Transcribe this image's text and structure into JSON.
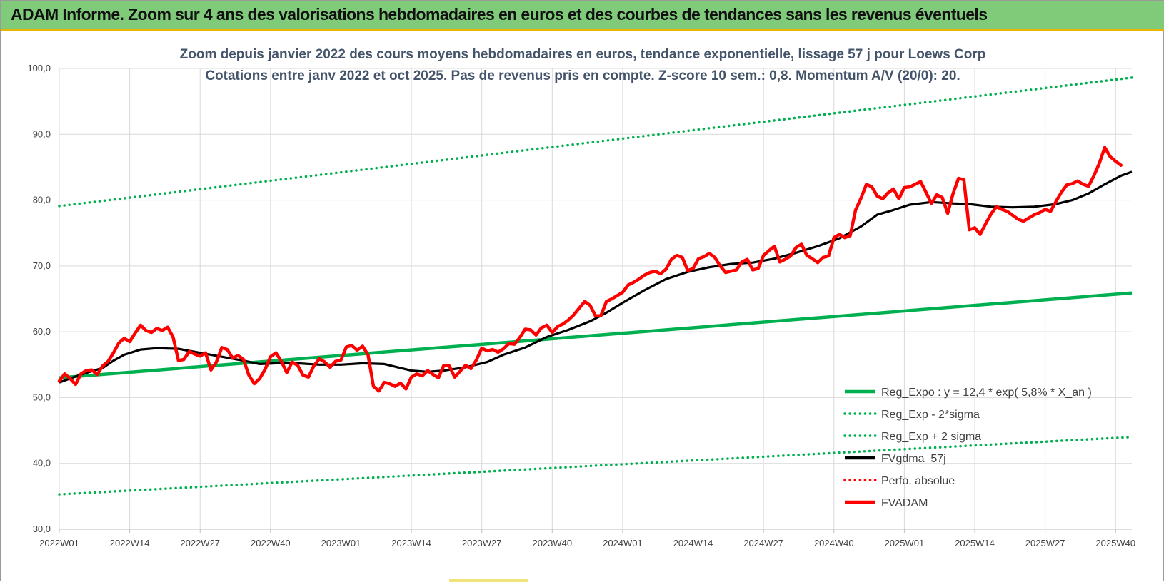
{
  "header": {
    "title": "ADAM Informe. Zoom sur 4 ans des valorisations hebdomadaires en euros et des courbes de tendances sans les revenus éventuels"
  },
  "colors": {
    "header_bg": "#7fcb7a",
    "trend": "#00b050",
    "band": "#00b050",
    "smooth": "#000000",
    "price": "#ff0000",
    "perfo": "#ff0000",
    "grid": "#d9d9d9",
    "text": "#44546a"
  },
  "chart_data": {
    "type": "line",
    "subtitle_lines": [
      "Zoom depuis janvier 2022 des cours moyens hebdomadaires en euros, tendance exponentielle, lissage 57 j pour Loews Corp",
      "Cotations entre janv 2022 et oct 2025. Pas de revenus pris en compte. Z-score 10 sem.: 0,8. Momentum A/V (20/0): 20."
    ],
    "x_start": "2022W01",
    "week_count": 199,
    "x_ticks": [
      {
        "index": 0,
        "label": "2022W01"
      },
      {
        "index": 13,
        "label": "2022W14"
      },
      {
        "index": 26,
        "label": "2022W27"
      },
      {
        "index": 39,
        "label": "2022W40"
      },
      {
        "index": 52,
        "label": "2023W01"
      },
      {
        "index": 65,
        "label": "2023W14"
      },
      {
        "index": 78,
        "label": "2023W27"
      },
      {
        "index": 91,
        "label": "2023W40"
      },
      {
        "index": 104,
        "label": "2024W01"
      },
      {
        "index": 117,
        "label": "2024W14"
      },
      {
        "index": 130,
        "label": "2024W27"
      },
      {
        "index": 143,
        "label": "2024W40"
      },
      {
        "index": 156,
        "label": "2025W01"
      },
      {
        "index": 169,
        "label": "2025W14"
      },
      {
        "index": 182,
        "label": "2025W27"
      },
      {
        "index": 195,
        "label": "2025W40"
      }
    ],
    "ylim": [
      30,
      100
    ],
    "y_ticks": [
      {
        "value": 30,
        "label": "30,0"
      },
      {
        "value": 40,
        "label": "40,0"
      },
      {
        "value": 50,
        "label": "50,0"
      },
      {
        "value": 60,
        "label": "60,0"
      },
      {
        "value": 70,
        "label": "70,0"
      },
      {
        "value": 80,
        "label": "80,0"
      },
      {
        "value": 90,
        "label": "90,0"
      },
      {
        "value": 100,
        "label": "100,0"
      }
    ],
    "grid": true,
    "legend_position": "bottom-right",
    "series": [
      {
        "name": "Reg_Expo : y = 12,4 * exp( 5,8% * X_an )",
        "style": "solid",
        "color": "#00b050",
        "points": [
          [
            0,
            53.0
          ],
          [
            198,
            65.9
          ]
        ]
      },
      {
        "name": "Reg_Exp - 2*sigma",
        "style": "dotted",
        "color": "#00b050",
        "points": [
          [
            0,
            35.3
          ],
          [
            198,
            44.0
          ]
        ]
      },
      {
        "name": "Reg_Exp + 2 sigma",
        "style": "dotted",
        "color": "#00b050",
        "points": [
          [
            0,
            79.1
          ],
          [
            198,
            98.6
          ]
        ]
      },
      {
        "name": "FVgdma_57j",
        "style": "solid",
        "color": "#000000",
        "points": [
          [
            0,
            52.3
          ],
          [
            4,
            53.5
          ],
          [
            8,
            54.5
          ],
          [
            10,
            55.6
          ],
          [
            12,
            56.5
          ],
          [
            15,
            57.3
          ],
          [
            18,
            57.5
          ],
          [
            22,
            57.4
          ],
          [
            26,
            56.8
          ],
          [
            30,
            56.2
          ],
          [
            34,
            55.6
          ],
          [
            37,
            55.1
          ],
          [
            40,
            55.2
          ],
          [
            44,
            55.2
          ],
          [
            48,
            55.0
          ],
          [
            52,
            55.0
          ],
          [
            56,
            55.2
          ],
          [
            60,
            55.1
          ],
          [
            63,
            54.5
          ],
          [
            65,
            54.1
          ],
          [
            68,
            53.9
          ],
          [
            71,
            54.1
          ],
          [
            75,
            54.6
          ],
          [
            79,
            55.4
          ],
          [
            82,
            56.5
          ],
          [
            86,
            57.6
          ],
          [
            90,
            59.2
          ],
          [
            94,
            60.3
          ],
          [
            98,
            61.6
          ],
          [
            101,
            62.9
          ],
          [
            104,
            64.4
          ],
          [
            108,
            66.3
          ],
          [
            112,
            68.0
          ],
          [
            116,
            69.1
          ],
          [
            120,
            69.8
          ],
          [
            124,
            70.3
          ],
          [
            128,
            70.5
          ],
          [
            132,
            71.1
          ],
          [
            136,
            72.0
          ],
          [
            140,
            73.0
          ],
          [
            144,
            74.2
          ],
          [
            148,
            76.0
          ],
          [
            151,
            77.8
          ],
          [
            154,
            78.5
          ],
          [
            157,
            79.3
          ],
          [
            161,
            79.7
          ],
          [
            165,
            79.5
          ],
          [
            168,
            79.4
          ],
          [
            172,
            79.0
          ],
          [
            176,
            78.9
          ],
          [
            180,
            79.0
          ],
          [
            184,
            79.4
          ],
          [
            187,
            80.0
          ],
          [
            190,
            81.0
          ],
          [
            193,
            82.4
          ],
          [
            196,
            83.7
          ],
          [
            198,
            84.3
          ]
        ]
      },
      {
        "name": "Perfo. absolue",
        "style": "dotted",
        "color": "#ff0000",
        "points": []
      },
      {
        "name": "FVADAM",
        "style": "solid",
        "color": "#ff0000",
        "points": [
          [
            0,
            52.5
          ],
          [
            1,
            53.6
          ],
          [
            2,
            52.9
          ],
          [
            3,
            52.0
          ],
          [
            4,
            53.6
          ],
          [
            5,
            54.1
          ],
          [
            6,
            54.2
          ],
          [
            7,
            53.5
          ],
          [
            8,
            54.8
          ],
          [
            9,
            55.5
          ],
          [
            10,
            56.8
          ],
          [
            11,
            58.3
          ],
          [
            12,
            59.0
          ],
          [
            13,
            58.5
          ],
          [
            14,
            59.8
          ],
          [
            15,
            61.0
          ],
          [
            16,
            60.2
          ],
          [
            17,
            59.9
          ],
          [
            18,
            60.5
          ],
          [
            19,
            60.2
          ],
          [
            20,
            60.7
          ],
          [
            21,
            59.2
          ],
          [
            22,
            55.6
          ],
          [
            23,
            55.8
          ],
          [
            24,
            57.0
          ],
          [
            25,
            56.6
          ],
          [
            26,
            56.3
          ],
          [
            27,
            56.8
          ],
          [
            28,
            54.2
          ],
          [
            29,
            55.4
          ],
          [
            30,
            57.6
          ],
          [
            31,
            57.3
          ],
          [
            32,
            56.0
          ],
          [
            33,
            56.4
          ],
          [
            34,
            55.8
          ],
          [
            35,
            53.4
          ],
          [
            36,
            52.1
          ],
          [
            37,
            52.9
          ],
          [
            38,
            54.3
          ],
          [
            39,
            56.2
          ],
          [
            40,
            56.8
          ],
          [
            41,
            55.5
          ],
          [
            42,
            53.8
          ],
          [
            43,
            55.4
          ],
          [
            44,
            54.9
          ],
          [
            45,
            53.4
          ],
          [
            46,
            53.1
          ],
          [
            47,
            54.8
          ],
          [
            48,
            55.9
          ],
          [
            49,
            55.4
          ],
          [
            50,
            54.6
          ],
          [
            51,
            55.5
          ],
          [
            52,
            55.7
          ],
          [
            53,
            57.7
          ],
          [
            54,
            57.9
          ],
          [
            55,
            57.2
          ],
          [
            56,
            57.8
          ],
          [
            57,
            56.5
          ],
          [
            58,
            51.7
          ],
          [
            59,
            51.0
          ],
          [
            60,
            52.3
          ],
          [
            61,
            52.1
          ],
          [
            62,
            51.7
          ],
          [
            63,
            52.2
          ],
          [
            64,
            51.3
          ],
          [
            65,
            53.1
          ],
          [
            66,
            53.6
          ],
          [
            67,
            53.3
          ],
          [
            68,
            54.1
          ],
          [
            69,
            53.5
          ],
          [
            70,
            53.0
          ],
          [
            71,
            54.9
          ],
          [
            72,
            54.8
          ],
          [
            73,
            53.1
          ],
          [
            74,
            54.0
          ],
          [
            75,
            54.9
          ],
          [
            76,
            54.4
          ],
          [
            77,
            55.7
          ],
          [
            78,
            57.5
          ],
          [
            79,
            57.1
          ],
          [
            80,
            57.3
          ],
          [
            81,
            56.9
          ],
          [
            82,
            57.4
          ],
          [
            83,
            58.2
          ],
          [
            84,
            58.1
          ],
          [
            85,
            59.1
          ],
          [
            86,
            60.4
          ],
          [
            87,
            60.3
          ],
          [
            88,
            59.5
          ],
          [
            89,
            60.6
          ],
          [
            90,
            61.0
          ],
          [
            91,
            59.9
          ],
          [
            92,
            60.8
          ],
          [
            93,
            61.2
          ],
          [
            94,
            61.8
          ],
          [
            95,
            62.6
          ],
          [
            96,
            63.6
          ],
          [
            97,
            64.6
          ],
          [
            98,
            64.0
          ],
          [
            99,
            62.4
          ],
          [
            100,
            62.5
          ],
          [
            101,
            64.6
          ],
          [
            102,
            65.0
          ],
          [
            103,
            65.5
          ],
          [
            104,
            66.0
          ],
          [
            105,
            67.1
          ],
          [
            106,
            67.5
          ],
          [
            107,
            68.0
          ],
          [
            108,
            68.6
          ],
          [
            109,
            69.0
          ],
          [
            110,
            69.2
          ],
          [
            111,
            68.8
          ],
          [
            112,
            69.5
          ],
          [
            113,
            71.0
          ],
          [
            114,
            71.6
          ],
          [
            115,
            71.3
          ],
          [
            116,
            69.3
          ],
          [
            117,
            69.6
          ],
          [
            118,
            71.1
          ],
          [
            119,
            71.4
          ],
          [
            120,
            71.9
          ],
          [
            121,
            71.3
          ],
          [
            122,
            70.0
          ],
          [
            123,
            69.0
          ],
          [
            124,
            69.2
          ],
          [
            125,
            69.4
          ],
          [
            126,
            70.6
          ],
          [
            127,
            71.0
          ],
          [
            128,
            69.4
          ],
          [
            129,
            69.6
          ],
          [
            130,
            71.6
          ],
          [
            131,
            72.3
          ],
          [
            132,
            73.0
          ],
          [
            133,
            70.6
          ],
          [
            134,
            71.0
          ],
          [
            135,
            71.5
          ],
          [
            136,
            72.8
          ],
          [
            137,
            73.3
          ],
          [
            138,
            71.6
          ],
          [
            139,
            71.1
          ],
          [
            140,
            70.5
          ],
          [
            141,
            71.3
          ],
          [
            142,
            71.5
          ],
          [
            143,
            74.3
          ],
          [
            144,
            74.8
          ],
          [
            145,
            74.3
          ],
          [
            146,
            74.6
          ],
          [
            147,
            78.5
          ],
          [
            148,
            80.3
          ],
          [
            149,
            82.4
          ],
          [
            150,
            82.0
          ],
          [
            151,
            80.6
          ],
          [
            152,
            80.2
          ],
          [
            153,
            81.1
          ],
          [
            154,
            81.7
          ],
          [
            155,
            80.2
          ],
          [
            156,
            81.9
          ],
          [
            157,
            82.0
          ],
          [
            158,
            82.4
          ],
          [
            159,
            82.8
          ],
          [
            160,
            81.2
          ],
          [
            161,
            79.5
          ],
          [
            162,
            80.8
          ],
          [
            163,
            80.4
          ],
          [
            164,
            78.0
          ],
          [
            165,
            81.0
          ],
          [
            166,
            83.3
          ],
          [
            167,
            83.1
          ],
          [
            168,
            75.5
          ],
          [
            169,
            75.8
          ],
          [
            170,
            74.8
          ],
          [
            171,
            76.4
          ],
          [
            172,
            77.9
          ],
          [
            173,
            79.0
          ],
          [
            174,
            78.6
          ],
          [
            175,
            78.3
          ],
          [
            176,
            77.7
          ],
          [
            177,
            77.1
          ],
          [
            178,
            76.8
          ],
          [
            179,
            77.3
          ],
          [
            180,
            77.8
          ],
          [
            181,
            78.1
          ],
          [
            182,
            78.6
          ],
          [
            183,
            78.3
          ],
          [
            184,
            79.8
          ],
          [
            185,
            81.2
          ],
          [
            186,
            82.3
          ],
          [
            187,
            82.5
          ],
          [
            188,
            82.9
          ],
          [
            189,
            82.4
          ],
          [
            190,
            82.1
          ],
          [
            191,
            83.7
          ],
          [
            192,
            85.6
          ],
          [
            193,
            88.0
          ],
          [
            194,
            86.6
          ],
          [
            195,
            85.9
          ],
          [
            196,
            85.3
          ]
        ]
      }
    ]
  }
}
